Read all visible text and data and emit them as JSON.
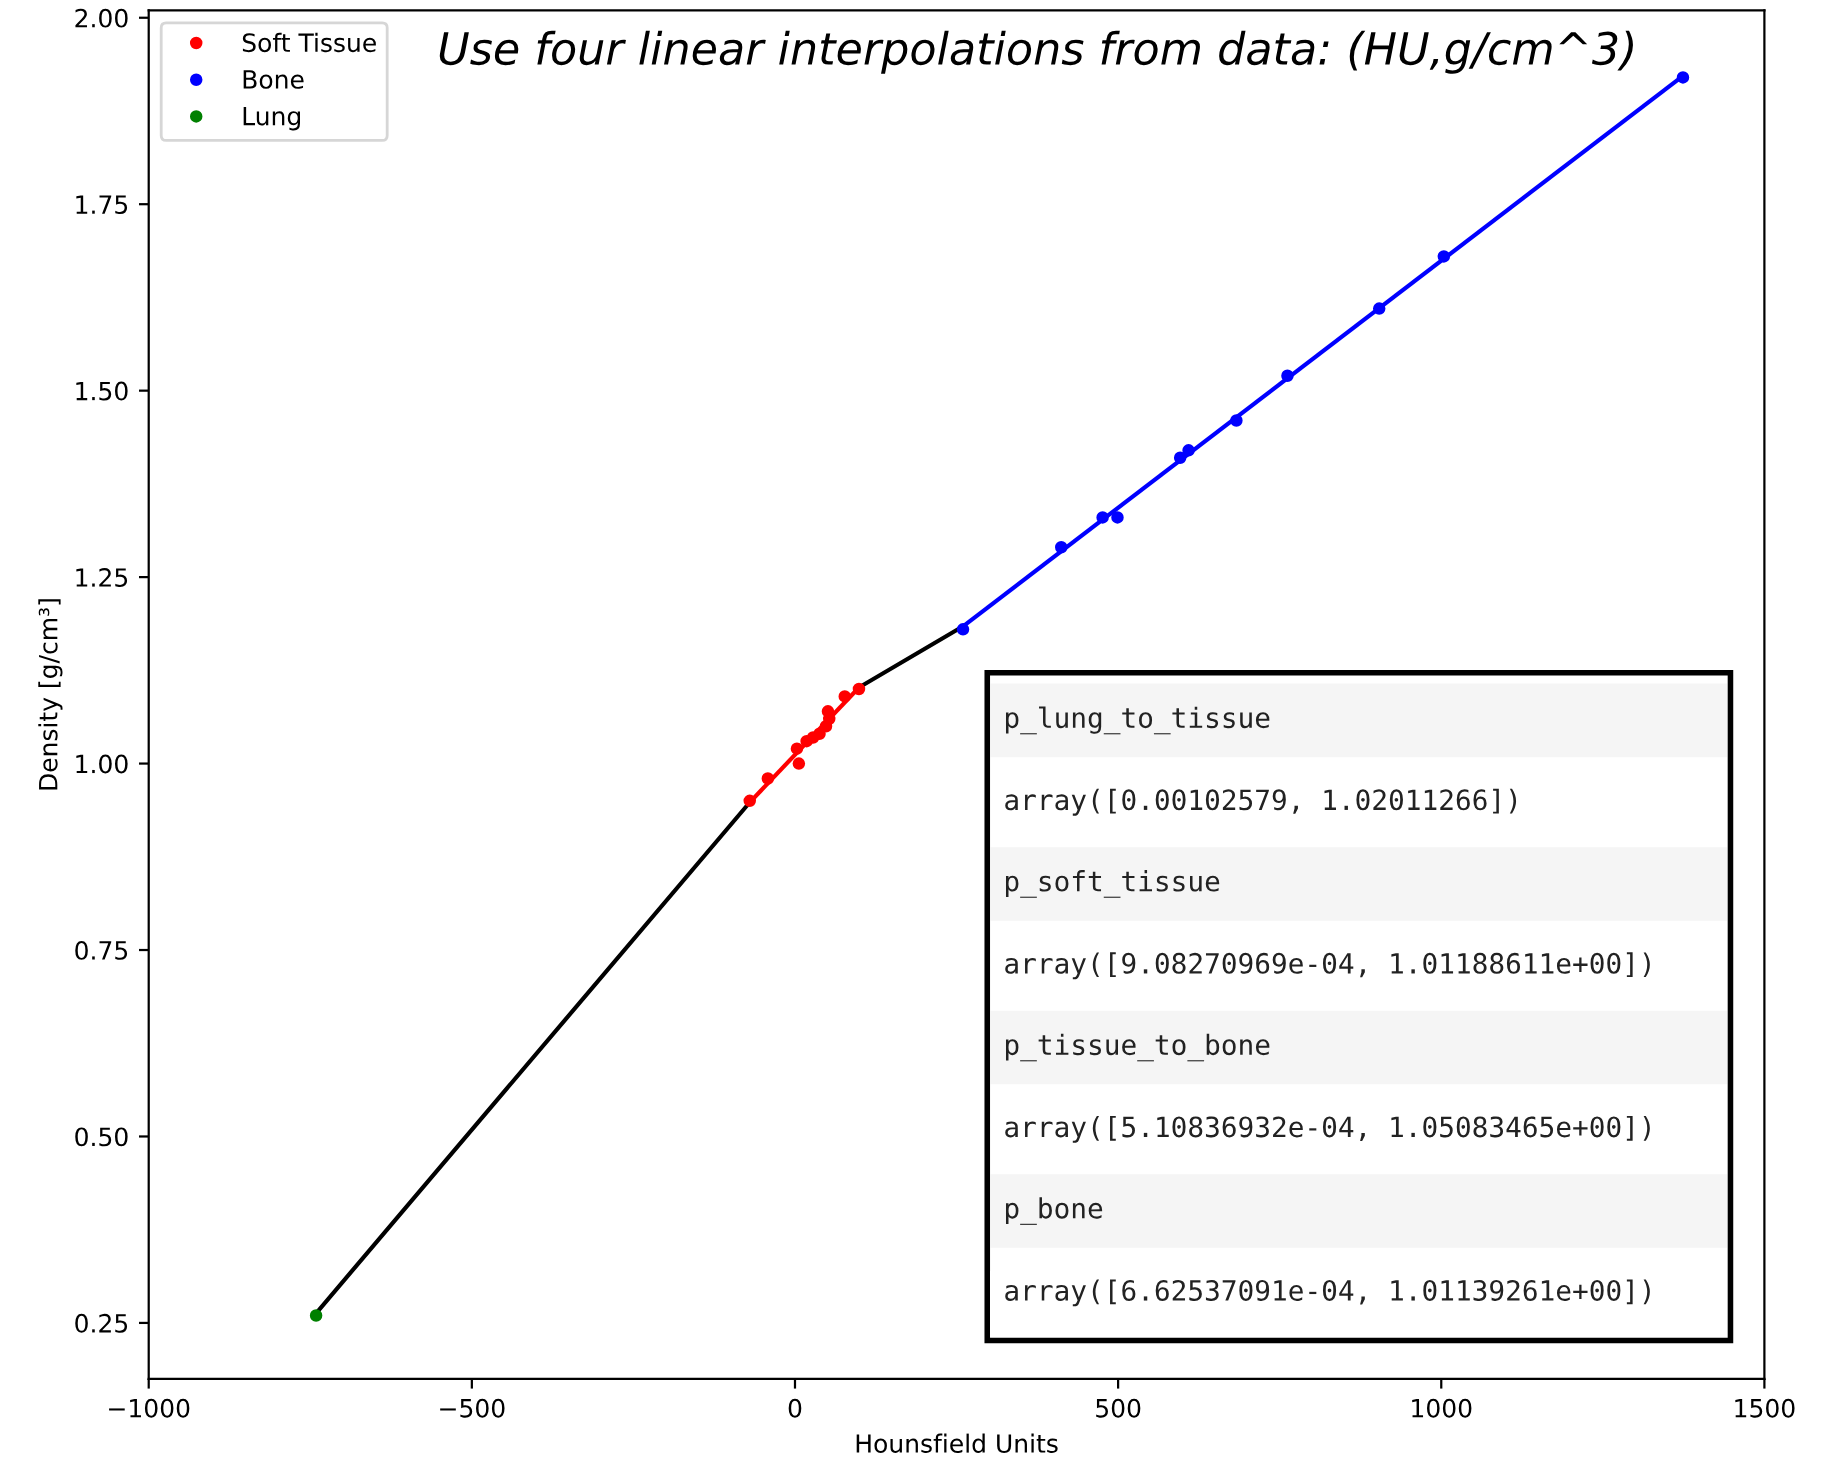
{
  "chart_data": {
    "type": "scatter",
    "title": "Use four linear interpolations from data: (HU,g/cm^3)",
    "xlabel": "Hounsfield Units",
    "ylabel": "Density [g/cm³]",
    "xlim": [
      -1000,
      1500
    ],
    "xticks": [
      {
        "value": -1000,
        "label": "−1000"
      },
      {
        "value": -500,
        "label": "−500"
      },
      0,
      500,
      1000,
      1500
    ],
    "ylim": [
      0.175,
      2.01
    ],
    "yticks": [
      {
        "value": 0.25,
        "label": "0.25"
      },
      {
        "value": 0.5,
        "label": "0.50"
      },
      {
        "value": 0.75,
        "label": "0.75"
      },
      {
        "value": 1.0,
        "label": "1.00"
      },
      {
        "value": 1.25,
        "label": "1.25"
      },
      {
        "value": 1.5,
        "label": "1.50"
      },
      {
        "value": 1.75,
        "label": "1.75"
      },
      {
        "value": 2.0,
        "label": "2.00"
      }
    ],
    "grid": false,
    "legend": "top left",
    "marker": "circle",
    "series": [
      {
        "type": "line",
        "marker": "none",
        "color": "#000000",
        "x": [
          -741,
          -70
        ],
        "values": [
          0.263,
          0.948
        ]
      },
      {
        "type": "line",
        "marker": "none",
        "color": "#ff0000",
        "x": [
          -70,
          99
        ],
        "values": [
          0.948,
          1.102
        ]
      },
      {
        "type": "line",
        "marker": "none",
        "color": "#000000",
        "x": [
          99,
          260
        ],
        "values": [
          1.102,
          1.184
        ]
      },
      {
        "type": "line",
        "marker": "none",
        "color": "#0000ff",
        "x": [
          260,
          1374
        ],
        "values": [
          1.184,
          1.922
        ]
      },
      {
        "name": "Soft Tissue",
        "color": "#ff0000",
        "x": [
          -70,
          -42,
          6,
          3,
          18,
          28,
          38,
          48,
          53,
          51,
          77,
          99
        ],
        "values": [
          0.95,
          0.98,
          1.0,
          1.02,
          1.03,
          1.035,
          1.04,
          1.05,
          1.06,
          1.07,
          1.09,
          1.1
        ]
      },
      {
        "name": "Bone",
        "color": "#0000ff",
        "x": [
          260,
          412,
          476,
          499,
          596,
          609,
          683,
          762,
          904,
          1004,
          1374
        ],
        "values": [
          1.18,
          1.29,
          1.33,
          1.33,
          1.41,
          1.42,
          1.46,
          1.52,
          1.61,
          1.68,
          1.92
        ]
      },
      {
        "name": "Lung",
        "color": "#008000",
        "x": [
          -741
        ],
        "values": [
          0.26
        ]
      }
    ],
    "annotations": [
      "p_lung_to_tissue",
      "array([0.00102579, 1.02011266])",
      "p_soft_tissue",
      "array([9.08270969e-04, 1.01188611e+00])",
      "p_tissue_to_bone",
      "array([5.10836932e-04, 1.05083465e+00])",
      "p_bone",
      "array([6.62537091e-04, 1.01139261e+00])"
    ]
  }
}
